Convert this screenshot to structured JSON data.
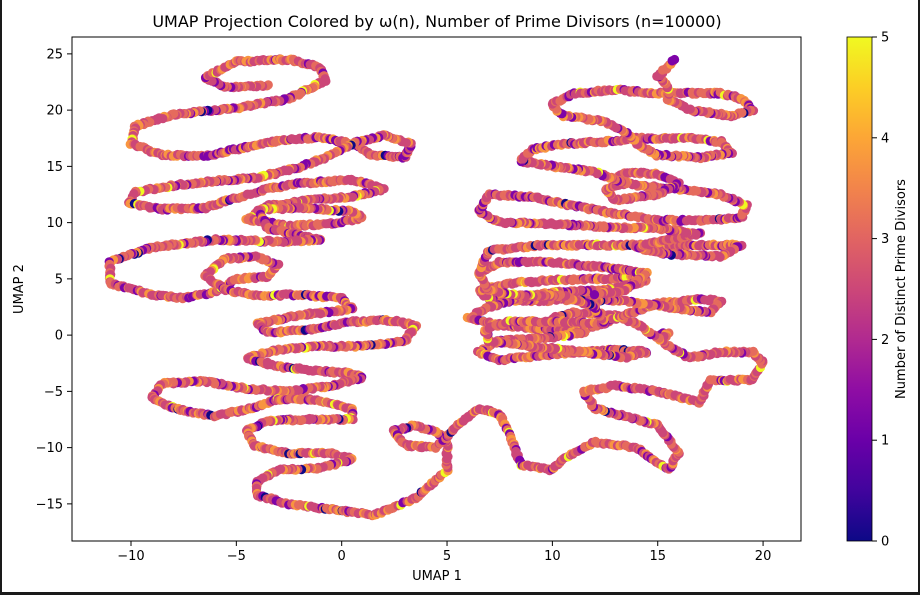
{
  "chart_data": {
    "type": "scatter",
    "title": "UMAP Projection Colored by ω(n), Number of Prime Divisors (n=10000)",
    "xlabel": "UMAP 1",
    "ylabel": "UMAP 2",
    "xlim": [
      -12.8,
      21.8
    ],
    "ylim": [
      -18.3,
      26.5
    ],
    "x_ticks": [
      -10,
      -5,
      0,
      5,
      10,
      15,
      20
    ],
    "x_tick_labels": [
      "−10",
      "−5",
      "0",
      "5",
      "10",
      "15",
      "20"
    ],
    "y_ticks": [
      -15,
      -10,
      -5,
      0,
      5,
      10,
      15,
      20,
      25
    ],
    "y_tick_labels": [
      "−15",
      "−10",
      "−5",
      "0",
      "5",
      "10",
      "15",
      "20",
      "25"
    ],
    "grid": false,
    "colormap": "plasma",
    "colorbar": {
      "label": "Number of Distinct Prime Divisors",
      "range": [
        0,
        5
      ],
      "ticks": [
        0,
        1,
        2,
        3,
        4,
        5
      ],
      "tick_labels": [
        "0",
        "1",
        "2",
        "3",
        "4",
        "5"
      ]
    },
    "n": 10000,
    "series": [
      {
        "values_note_free": true,
        "paths": [
          [
            [
              -3.5,
              22.2
            ],
            [
              -5.5,
              22.0
            ],
            [
              -6.5,
              22.9
            ],
            [
              -5.0,
              24.3
            ],
            [
              -2.5,
              24.5
            ],
            [
              -1.0,
              23.8
            ],
            [
              -0.8,
              22.6
            ],
            [
              -2.5,
              21.0
            ],
            [
              -5.0,
              20.2
            ],
            [
              -8.0,
              19.6
            ],
            [
              -9.8,
              18.6
            ],
            [
              -10.0,
              17.0
            ],
            [
              -8.5,
              16.0
            ],
            [
              -6.5,
              15.9
            ],
            [
              -5.0,
              16.5
            ],
            [
              -3.0,
              17.3
            ],
            [
              -1.0,
              17.6
            ],
            [
              0.5,
              17.0
            ],
            [
              1.5,
              16.0
            ],
            [
              3.0,
              15.8
            ],
            [
              3.3,
              17.0
            ],
            [
              2.0,
              17.8
            ],
            [
              0.5,
              17.0
            ],
            [
              -0.5,
              16.0
            ],
            [
              -2.0,
              14.9
            ],
            [
              -4.0,
              14.0
            ],
            [
              -6.0,
              13.7
            ],
            [
              -8.0,
              13.3
            ],
            [
              -9.8,
              12.7
            ],
            [
              -10.1,
              11.7
            ],
            [
              -8.5,
              11.2
            ],
            [
              -6.5,
              11.3
            ],
            [
              -5.0,
              12.2
            ],
            [
              -3.5,
              13.0
            ],
            [
              -2.0,
              13.5
            ],
            [
              0.5,
              13.8
            ],
            [
              2.0,
              13.0
            ],
            [
              0.5,
              12.3
            ],
            [
              -1.5,
              12.0
            ],
            [
              -3.5,
              11.5
            ],
            [
              -4.5,
              10.3
            ],
            [
              -2.5,
              9.7
            ],
            [
              -0.5,
              9.9
            ],
            [
              1.0,
              10.4
            ],
            [
              0.5,
              11.0
            ],
            [
              -1.5,
              11.3
            ],
            [
              -4.0,
              11.2
            ],
            [
              -3.5,
              9.5
            ],
            [
              -1.0,
              8.5
            ],
            [
              -3.0,
              8.3
            ],
            [
              -6.0,
              8.5
            ],
            [
              -9.0,
              7.8
            ],
            [
              -11.0,
              6.5
            ],
            [
              -11.0,
              4.6
            ],
            [
              -9.0,
              3.6
            ],
            [
              -7.5,
              3.3
            ],
            [
              -6.0,
              3.8
            ],
            [
              -5.0,
              5.0
            ],
            [
              -3.5,
              5.2
            ],
            [
              -3.0,
              6.2
            ],
            [
              -4.0,
              7.0
            ],
            [
              -5.5,
              6.8
            ],
            [
              -6.5,
              5.3
            ],
            [
              -5.5,
              4.0
            ],
            [
              -4.0,
              3.5
            ],
            [
              -2.0,
              3.6
            ],
            [
              0.0,
              3.3
            ],
            [
              0.5,
              2.3
            ],
            [
              -2.0,
              1.8
            ],
            [
              -4.0,
              1.0
            ],
            [
              -3.5,
              0.2
            ],
            [
              -1.5,
              0.5
            ],
            [
              0.5,
              1.2
            ],
            [
              2.5,
              1.3
            ],
            [
              3.5,
              0.8
            ],
            [
              3.0,
              -0.5
            ],
            [
              1.0,
              -1.0
            ],
            [
              -1.0,
              -1.0
            ],
            [
              -3.0,
              -1.3
            ],
            [
              -4.5,
              -2.0
            ],
            [
              -3.0,
              -2.8
            ],
            [
              -1.0,
              -3.2
            ],
            [
              0.5,
              -3.4
            ],
            [
              1.0,
              -3.8
            ],
            [
              -0.5,
              -4.5
            ],
            [
              -2.5,
              -5.0
            ],
            [
              -4.5,
              -4.8
            ],
            [
              -6.5,
              -4.1
            ],
            [
              -8.5,
              -4.3
            ],
            [
              -9.0,
              -5.5
            ],
            [
              -8.0,
              -6.5
            ],
            [
              -6.0,
              -7.2
            ],
            [
              -4.5,
              -6.6
            ],
            [
              -3.0,
              -5.7
            ],
            [
              -1.5,
              -5.7
            ],
            [
              0.5,
              -6.5
            ],
            [
              0.5,
              -7.5
            ],
            [
              -1.5,
              -7.5
            ],
            [
              -3.5,
              -7.6
            ],
            [
              -4.5,
              -8.5
            ],
            [
              -4.2,
              -9.8
            ],
            [
              -2.5,
              -10.5
            ],
            [
              -0.5,
              -10.5
            ],
            [
              0.5,
              -11.0
            ],
            [
              -1.0,
              -11.8
            ],
            [
              -3.0,
              -12.0
            ],
            [
              -4.0,
              -13.0
            ],
            [
              -4.0,
              -14.2
            ],
            [
              -2.5,
              -15.0
            ],
            [
              -0.5,
              -15.5
            ],
            [
              1.5,
              -16.0
            ],
            [
              3.5,
              -14.5
            ],
            [
              5.0,
              -12.0
            ],
            [
              5.0,
              -9.0
            ],
            [
              3.5,
              -8.0
            ],
            [
              2.5,
              -8.5
            ],
            [
              3.0,
              -9.8
            ],
            [
              4.5,
              -10.0
            ],
            [
              5.5,
              -8.0
            ],
            [
              6.5,
              -6.5
            ],
            [
              7.5,
              -7.0
            ],
            [
              8.0,
              -9.0
            ],
            [
              8.5,
              -11.5
            ],
            [
              10.0,
              -12.0
            ],
            [
              10.5,
              -11.0
            ],
            [
              12.0,
              -9.5
            ],
            [
              14.0,
              -10.0
            ],
            [
              15.5,
              -12.0
            ],
            [
              16.0,
              -10.5
            ],
            [
              15.0,
              -8.0
            ],
            [
              14.0,
              -7.5
            ],
            [
              12.0,
              -6.5
            ],
            [
              11.5,
              -5.0
            ],
            [
              13.0,
              -4.5
            ],
            [
              15.0,
              -5.0
            ],
            [
              17.0,
              -6.0
            ],
            [
              17.5,
              -4.0
            ],
            [
              19.5,
              -4.0
            ],
            [
              20.0,
              -2.5
            ],
            [
              19.5,
              -1.5
            ],
            [
              18.0,
              -1.5
            ],
            [
              16.5,
              -2.0
            ],
            [
              15.5,
              -1.0
            ],
            [
              15.0,
              0.0
            ],
            [
              15.5,
              0.2
            ],
            [
              15.2,
              -0.5
            ],
            [
              14.0,
              1.0
            ],
            [
              13.0,
              1.8
            ],
            [
              11.0,
              2.0
            ],
            [
              10.0,
              1.5
            ],
            [
              11.5,
              0.5
            ],
            [
              13.0,
              1.5
            ],
            [
              15.0,
              2.8
            ],
            [
              17.0,
              3.2
            ],
            [
              18.0,
              3.0
            ],
            [
              17.5,
              2.0
            ],
            [
              15.5,
              2.5
            ],
            [
              13.5,
              3.0
            ],
            [
              11.0,
              3.2
            ],
            [
              9.0,
              3.0
            ],
            [
              7.0,
              3.2
            ],
            [
              6.5,
              4.0
            ],
            [
              8.0,
              4.6
            ],
            [
              10.0,
              4.9
            ],
            [
              12.5,
              5.0
            ],
            [
              14.0,
              5.3
            ],
            [
              14.5,
              4.8
            ],
            [
              12.5,
              4.0
            ],
            [
              10.0,
              3.8
            ],
            [
              8.5,
              3.3
            ],
            [
              7.0,
              2.5
            ],
            [
              6.0,
              1.5
            ],
            [
              8.0,
              0.8
            ],
            [
              10.0,
              0.5
            ],
            [
              11.5,
              0.2
            ],
            [
              10.0,
              -0.2
            ],
            [
              7.5,
              -0.5
            ],
            [
              6.5,
              -1.5
            ],
            [
              7.5,
              -2.2
            ],
            [
              9.5,
              -1.8
            ],
            [
              11.5,
              -1.5
            ],
            [
              13.0,
              -1.3
            ],
            [
              14.5,
              -1.5
            ],
            [
              13.5,
              -2.0
            ],
            [
              11.5,
              -1.5
            ],
            [
              9.0,
              -1.0
            ],
            [
              7.0,
              -0.5
            ],
            [
              6.8,
              0.5
            ],
            [
              8.0,
              1.2
            ],
            [
              10.5,
              1.2
            ],
            [
              12.5,
              1.0
            ]
          ],
          [
            [
              12.5,
              1.0
            ],
            [
              12.0,
              2.5
            ],
            [
              10.5,
              3.5
            ],
            [
              8.5,
              3.5
            ],
            [
              7.0,
              4.0
            ],
            [
              6.5,
              5.5
            ],
            [
              7.5,
              6.5
            ],
            [
              10.0,
              6.5
            ],
            [
              12.5,
              6.0
            ],
            [
              14.5,
              5.5
            ],
            [
              13.5,
              4.0
            ],
            [
              12.0,
              3.6
            ]
          ],
          [
            [
              6.5,
              5.5
            ],
            [
              7.0,
              7.5
            ],
            [
              9.5,
              8.0
            ],
            [
              12.0,
              8.0
            ],
            [
              14.5,
              8.0
            ],
            [
              17.0,
              8.0
            ],
            [
              19.0,
              8.0
            ],
            [
              18.0,
              7.0
            ],
            [
              15.5,
              7.2
            ],
            [
              14.0,
              7.8
            ],
            [
              15.5,
              8.5
            ],
            [
              17.0,
              9.0
            ],
            [
              15.0,
              9.5
            ],
            [
              12.5,
              9.6
            ],
            [
              10.0,
              9.9
            ],
            [
              7.5,
              10.0
            ],
            [
              6.5,
              11.0
            ],
            [
              7.0,
              12.5
            ],
            [
              9.0,
              12.3
            ],
            [
              11.0,
              11.5
            ],
            [
              13.0,
              10.8
            ],
            [
              15.0,
              10.2
            ],
            [
              17.5,
              10.2
            ],
            [
              19.0,
              10.5
            ],
            [
              19.2,
              11.5
            ],
            [
              18.0,
              12.5
            ],
            [
              16.0,
              13.0
            ],
            [
              14.0,
              13.3
            ],
            [
              13.0,
              14.0
            ],
            [
              13.5,
              14.5
            ],
            [
              15.0,
              14.3
            ],
            [
              16.0,
              13.5
            ],
            [
              15.0,
              12.5
            ],
            [
              13.0,
              12.0
            ],
            [
              12.5,
              13.0
            ],
            [
              13.5,
              13.5
            ],
            [
              12.0,
              14.5
            ],
            [
              10.0,
              15.0
            ],
            [
              8.5,
              15.5
            ],
            [
              9.0,
              16.5
            ],
            [
              10.5,
              17.0
            ],
            [
              12.5,
              17.2
            ],
            [
              14.0,
              17.5
            ],
            [
              16.5,
              17.5
            ],
            [
              18.0,
              17.2
            ],
            [
              18.5,
              16.2
            ],
            [
              17.0,
              15.8
            ],
            [
              15.0,
              16.0
            ],
            [
              14.0,
              17.0
            ],
            [
              13.5,
              18.0
            ],
            [
              12.5,
              19.0
            ],
            [
              10.5,
              19.5
            ],
            [
              10.0,
              20.5
            ],
            [
              11.0,
              21.5
            ],
            [
              13.0,
              21.8
            ],
            [
              15.0,
              21.5
            ],
            [
              16.5,
              21.5
            ],
            [
              18.0,
              21.5
            ],
            [
              19.0,
              21.0
            ],
            [
              19.5,
              20.0
            ],
            [
              18.5,
              19.5
            ],
            [
              16.5,
              20.0
            ],
            [
              15.5,
              21.0
            ],
            [
              15.5,
              22.0
            ],
            [
              15.0,
              23.0
            ],
            [
              15.8,
              24.5
            ]
          ]
        ]
      }
    ]
  }
}
